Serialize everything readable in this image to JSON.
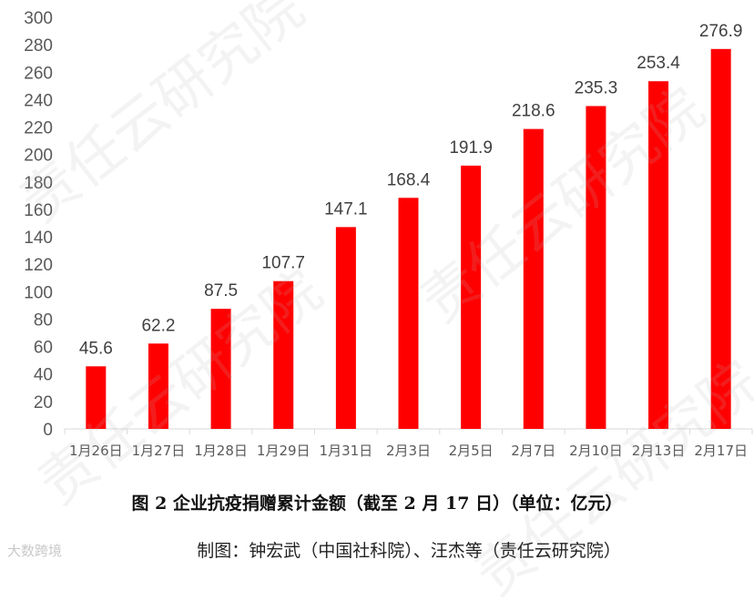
{
  "chart_data": {
    "type": "bar",
    "categories": [
      "1月26日",
      "1月27日",
      "1月28日",
      "1月29日",
      "1月31日",
      "2月3日",
      "2月5日",
      "2月7日",
      "2月10日",
      "2月13日",
      "2月17日"
    ],
    "values": [
      45.6,
      62.2,
      87.5,
      107.7,
      147.1,
      168.4,
      191.9,
      218.6,
      235.3,
      253.4,
      276.9
    ],
    "data_labels": [
      "45.6",
      "62.2",
      "87.5",
      "107.7",
      "147.1",
      "168.4",
      "191.9",
      "218.6",
      "235.3",
      "253.4",
      "276.9"
    ],
    "yticks": [
      "0",
      "20",
      "40",
      "60",
      "80",
      "100",
      "120",
      "140",
      "160",
      "180",
      "200",
      "220",
      "240",
      "260",
      "280",
      "300"
    ],
    "ylim": [
      0,
      300
    ],
    "title": "",
    "xlabel": "",
    "ylabel": "",
    "grid": false,
    "bar_color": "#ff0000"
  },
  "caption": "图 2 企业抗疫捐赠累计金额（截至 2 月 17 日）（单位：亿元）",
  "credit": "制图：钟宏武（中国社科院）、汪杰等（责任云研究院）",
  "watermark": "责任云研究院",
  "logo": "大数跨境"
}
